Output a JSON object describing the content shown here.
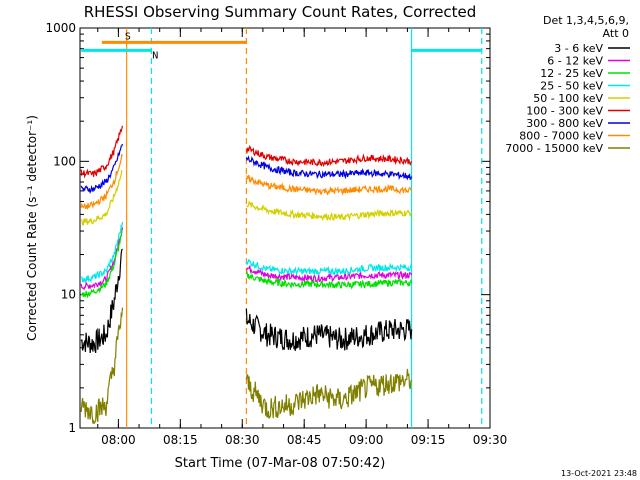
{
  "chart_data": {
    "type": "line",
    "title": "RHESSI Observing Summary Count Rates, Corrected",
    "xlabel": "Start Time (07-Mar-08 07:50:42)",
    "ylabel": "Corrected Count Rate (s⁻¹ detector⁻¹)",
    "y_scale": "log",
    "ylim": [
      1,
      1000
    ],
    "y_ticks": [
      {
        "value": 1,
        "label": "1"
      },
      {
        "value": 10,
        "label": "10"
      },
      {
        "value": 100,
        "label": "100"
      },
      {
        "value": 1000,
        "label": "1000"
      }
    ],
    "xlim": [
      "07:50:42",
      "09:30:00"
    ],
    "x_ticks": [
      "08:00",
      "08:15",
      "08:30",
      "08:45",
      "09:00",
      "09:15",
      "09:30"
    ],
    "grid": false,
    "legend_header": [
      "Det 1,3,4,5,6,9,",
      "Att 0"
    ],
    "legend_position": "top-right",
    "footer_timestamp": "13-Oct-2021 23:48",
    "series": [
      {
        "name": "3 - 6 keV",
        "color": "#000000",
        "x": [
          "07:51",
          "07:54",
          "07:57",
          "07:59",
          "08:01",
          "08:31",
          "08:36",
          "08:42",
          "08:48",
          "08:54",
          "09:00",
          "09:06",
          "09:11"
        ],
        "values": [
          4.5,
          4.3,
          5.0,
          9,
          22,
          6.5,
          5.0,
          4.6,
          5.0,
          4.6,
          5.0,
          5.4,
          5.5
        ]
      },
      {
        "name": "6 - 12 keV",
        "color": "#e000e0",
        "x": [
          "07:51",
          "07:54",
          "07:57",
          "07:59",
          "08:01",
          "08:31",
          "08:36",
          "08:42",
          "08:48",
          "08:54",
          "09:00",
          "09:06",
          "09:11"
        ],
        "values": [
          11.5,
          11.8,
          13,
          18,
          32,
          16,
          14,
          13.5,
          13.3,
          13.5,
          14,
          14,
          14
        ]
      },
      {
        "name": "12 - 25 keV",
        "color": "#00e000",
        "x": [
          "07:51",
          "07:54",
          "07:57",
          "07:59",
          "08:01",
          "08:31",
          "08:36",
          "08:42",
          "08:48",
          "08:54",
          "09:00",
          "09:06",
          "09:11"
        ],
        "values": [
          10,
          10.5,
          12,
          17,
          30,
          14,
          12.5,
          12,
          12,
          11.8,
          12,
          12.3,
          12.3
        ]
      },
      {
        "name": "25 - 50 keV",
        "color": "#00e8e8",
        "x": [
          "07:51",
          "07:54",
          "07:57",
          "07:59",
          "08:01",
          "08:31",
          "08:36",
          "08:42",
          "08:48",
          "08:54",
          "09:00",
          "09:06",
          "09:11"
        ],
        "values": [
          13,
          13.5,
          15,
          20,
          35,
          18,
          15.5,
          15,
          15,
          15,
          15.8,
          16,
          16
        ]
      },
      {
        "name": "50 - 100 keV",
        "color": "#d4d000",
        "x": [
          "07:51",
          "07:54",
          "07:57",
          "07:59",
          "08:01",
          "08:31",
          "08:36",
          "08:42",
          "08:48",
          "08:54",
          "09:00",
          "09:06",
          "09:11"
        ],
        "values": [
          35,
          36,
          40,
          55,
          85,
          48,
          43,
          40,
          39,
          38,
          40,
          41,
          41
        ]
      },
      {
        "name": "100 - 300 keV",
        "color": "#e00000",
        "x": [
          "07:51",
          "07:54",
          "07:57",
          "07:59",
          "08:01",
          "08:31",
          "08:36",
          "08:42",
          "08:48",
          "08:54",
          "09:00",
          "09:06",
          "09:11"
        ],
        "values": [
          82,
          80,
          92,
          120,
          185,
          125,
          108,
          100,
          98,
          100,
          106,
          104,
          100
        ]
      },
      {
        "name": "300 - 800 keV",
        "color": "#0000e0",
        "x": [
          "07:51",
          "07:54",
          "07:57",
          "07:59",
          "08:01",
          "08:31",
          "08:36",
          "08:42",
          "08:48",
          "08:54",
          "09:00",
          "09:06",
          "09:11"
        ],
        "values": [
          62,
          62,
          70,
          90,
          135,
          105,
          90,
          82,
          80,
          80,
          82,
          80,
          77
        ]
      },
      {
        "name": "800 - 7000 keV",
        "color": "#ff8c00",
        "x": [
          "07:51",
          "07:54",
          "07:57",
          "07:59",
          "08:01",
          "08:31",
          "08:36",
          "08:42",
          "08:48",
          "08:54",
          "09:00",
          "09:06",
          "09:11"
        ],
        "values": [
          45,
          47,
          55,
          72,
          110,
          75,
          66,
          62,
          60,
          60,
          62,
          62,
          60
        ]
      },
      {
        "name": "7000 - 15000 keV",
        "color": "#808000",
        "x": [
          "07:51",
          "07:54",
          "07:57",
          "07:59",
          "08:01",
          "08:31",
          "08:36",
          "08:42",
          "08:48",
          "08:54",
          "09:00",
          "09:06",
          "09:11"
        ],
        "values": [
          1.5,
          1.3,
          1.5,
          3,
          8,
          2.2,
          1.4,
          1.5,
          1.8,
          1.6,
          2.0,
          2.2,
          2.3
        ]
      }
    ],
    "annotations": [
      {
        "label": "S",
        "color": "#ff8c00",
        "bar_x": [
          "07:56",
          "08:31"
        ],
        "bar_value": 780
      },
      {
        "label": "N",
        "color": "#00e8e8",
        "bar_x": [
          "07:51",
          "08:08"
        ],
        "bar_value": 680
      },
      {
        "label": "",
        "color": "#00e8e8",
        "bar_x": [
          "09:11",
          "09:28"
        ],
        "bar_value": 680
      }
    ],
    "vertical_lines": [
      {
        "x": "08:02",
        "color": "#ff8c00",
        "style": "solid"
      },
      {
        "x": "08:08",
        "color": "#00e8e8",
        "style": "dashed"
      },
      {
        "x": "08:31",
        "color": "#ff8c00",
        "style": "dashed"
      },
      {
        "x": "09:11",
        "color": "#00e8e8",
        "style": "solid"
      },
      {
        "x": "09:28",
        "color": "#00e8e8",
        "style": "dashed"
      }
    ]
  }
}
